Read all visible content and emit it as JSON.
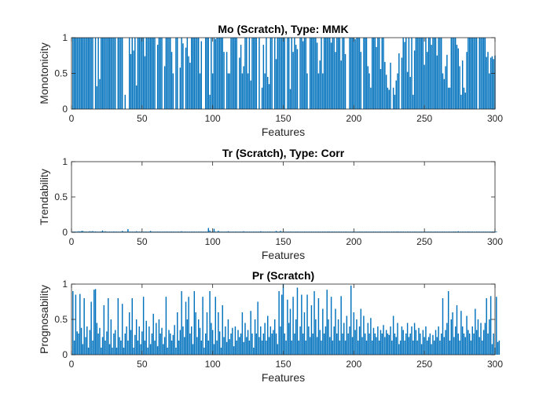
{
  "chart_data": [
    {
      "type": "bar",
      "title": "Mo (Scratch), Type: MMK",
      "xlabel": "Features",
      "ylabel": "Monotonicity",
      "xlim": [
        0,
        300
      ],
      "ylim": [
        0,
        1
      ],
      "xticks": [
        "0",
        "50",
        "100",
        "150",
        "200",
        "250",
        "300"
      ],
      "yticks": [
        "0",
        "0.5",
        "1"
      ],
      "bar_color": "#0072BD",
      "note": "298 features; most bars reach 1 with scattered lower values and gaps (0)",
      "values": [
        1,
        1,
        1,
        1,
        1,
        1,
        1,
        1,
        1,
        1,
        1,
        1,
        1,
        1,
        1,
        0,
        1,
        0.32,
        1,
        0.42,
        1,
        1,
        1,
        1,
        1,
        1,
        1,
        1,
        1,
        1,
        1,
        0,
        1,
        1,
        1,
        1,
        0,
        0.2,
        0,
        0,
        1,
        0.77,
        1,
        0.82,
        1,
        0.33,
        1,
        1,
        1,
        1,
        1,
        0.74,
        1,
        1,
        1,
        1,
        1,
        1,
        1,
        0,
        0.9,
        1,
        1,
        1,
        0,
        0.6,
        1,
        1,
        1,
        1,
        0.8,
        0.5,
        0,
        1,
        1,
        0,
        0.58,
        1,
        0.92,
        0,
        0.86,
        1,
        0.74,
        0.65,
        1,
        1,
        1,
        1,
        1,
        1,
        0.5,
        0.95,
        0,
        0,
        1,
        1,
        1,
        0.2,
        1,
        0.5,
        1,
        0.98,
        1,
        1,
        1,
        1,
        1,
        0.8,
        0,
        0.8,
        0.5,
        0.5,
        1,
        1,
        1,
        1,
        1,
        0,
        0.72,
        0.9,
        0.5,
        0.6,
        1,
        1,
        0.5,
        1,
        0.4,
        1,
        1,
        1,
        1,
        0,
        1,
        0,
        0.3,
        0.9,
        0.5,
        1,
        0.45,
        0.35,
        1,
        1,
        0,
        1,
        0.7,
        1,
        1,
        1,
        1,
        1,
        1,
        0,
        1,
        1,
        0.28,
        1,
        0.8,
        1,
        0.9,
        0.84,
        0,
        1,
        1,
        0.95,
        1,
        1,
        0.5,
        0,
        1,
        1,
        1,
        1,
        1,
        0.93,
        0.5,
        0.68,
        1,
        0.5,
        1,
        1,
        1,
        1,
        1,
        0.93,
        1,
        1,
        0.8,
        1,
        1,
        1,
        0.68,
        1,
        1,
        0.77,
        0,
        0,
        1,
        1,
        1,
        1,
        0.98,
        1,
        1,
        1,
        0.8,
        0,
        1,
        1,
        1,
        0.6,
        0.5,
        0.3,
        1,
        1,
        1,
        0.87,
        1,
        1,
        0.56,
        1,
        1,
        0.66,
        0.48,
        0.3,
        0.27,
        0.65,
        0,
        0.3,
        0.2,
        0.4,
        0.5,
        0.78,
        0,
        0.72,
        1,
        0.94,
        1,
        0.52,
        1,
        0.45,
        1,
        0.2,
        0.82,
        1,
        1,
        1,
        1,
        1,
        1,
        0.62,
        1,
        0.8,
        1,
        1,
        0.9,
        1,
        1,
        1,
        0.75,
        1,
        1,
        1,
        0.5,
        0.42,
        0.6,
        0.76,
        0.3,
        0.3,
        1,
        1,
        1,
        1,
        0.9,
        0.85,
        0.6,
        0.2,
        0.68,
        0.3,
        0.23,
        0.8,
        1,
        1,
        1,
        1,
        1,
        1,
        1,
        0,
        1,
        1,
        1,
        1,
        1,
        0.73,
        0.8,
        0.5,
        0.72,
        0.74,
        0.7,
        0.75
      ]
    },
    {
      "type": "bar",
      "title": "Tr (Scratch), Type: Corr",
      "xlabel": "Features",
      "ylabel": "Trendability",
      "xlim": [
        0,
        300
      ],
      "ylim": [
        0,
        1
      ],
      "xticks": [
        "0",
        "50",
        "100",
        "150",
        "200",
        "250",
        "300"
      ],
      "yticks": [
        "0",
        "0.5",
        "1"
      ],
      "bar_color": "#0072BD",
      "note": "all values near zero (< 0.07)",
      "values": [
        0.01,
        0.01,
        0.01,
        0.01,
        0.015,
        0.012,
        0.018,
        0.02,
        0.01,
        0.012,
        0.01,
        0.01,
        0.015,
        0.012,
        0.018,
        0.01,
        0.012,
        0.01,
        0.01,
        0.01,
        0.012,
        0.025,
        0.01,
        0.015,
        0.01,
        0.01,
        0.01,
        0.01,
        0.01,
        0.012,
        0.01,
        0.01,
        0.01,
        0.01,
        0.01,
        0.02,
        0.01,
        0.01,
        0.01,
        0.045,
        0.01,
        0.01,
        0.01,
        0.01,
        0.01,
        0.015,
        0.01,
        0.01,
        0.01,
        0.01,
        0.01,
        0.01,
        0.01,
        0.01,
        0.01,
        0.02,
        0.01,
        0.01,
        0.01,
        0.01,
        0.01,
        0.01,
        0.01,
        0.01,
        0.01,
        0.01,
        0.01,
        0.01,
        0.01,
        0.01,
        0.01,
        0.01,
        0.01,
        0.01,
        0.01,
        0.01,
        0.01,
        0.015,
        0.01,
        0.01,
        0.01,
        0.01,
        0.01,
        0.01,
        0.01,
        0.01,
        0.01,
        0.01,
        0.01,
        0.01,
        0.01,
        0.01,
        0.01,
        0.01,
        0.01,
        0.01,
        0.06,
        0.025,
        0.01,
        0.01,
        0.05,
        0.01,
        0.01,
        0.02,
        0.01,
        0.01,
        0.01,
        0.01,
        0.01,
        0.01,
        0.015,
        0.01,
        0.01,
        0.01,
        0.01,
        0.01,
        0.01,
        0.01,
        0.01,
        0.01,
        0.01,
        0.015,
        0.01,
        0.01,
        0.01,
        0.01,
        0.01,
        0.01,
        0.01,
        0.01,
        0.01,
        0.01,
        0.01,
        0.015,
        0.01,
        0.01,
        0.01,
        0.01,
        0.01,
        0.01,
        0.01,
        0.01,
        0.01,
        0.01,
        0.02,
        0.01,
        0.01,
        0.02,
        0.01,
        0.01,
        0.01,
        0.01,
        0.01,
        0.01,
        0.01,
        0.01,
        0.01,
        0.01,
        0.01,
        0.01,
        0.01,
        0.01,
        0.01,
        0.01,
        0.01,
        0.01,
        0.01,
        0.01,
        0.01,
        0.01,
        0.01,
        0.01,
        0.01,
        0.01,
        0.01,
        0.01,
        0.01,
        0.01,
        0.01,
        0.01,
        0.01,
        0.012,
        0.01,
        0.01,
        0.01,
        0.01,
        0.01,
        0.01,
        0.01,
        0.01,
        0.01,
        0.01,
        0.01,
        0.01,
        0.01,
        0.01,
        0.01,
        0.01,
        0.01,
        0.01,
        0.01,
        0.01,
        0.01,
        0.01,
        0.01,
        0.01,
        0.01,
        0.01,
        0.01,
        0.01,
        0.01,
        0.01,
        0.01,
        0.01,
        0.01,
        0.01,
        0.01,
        0.01,
        0.01,
        0.01,
        0.01,
        0.01,
        0.01,
        0.01,
        0.01,
        0.01,
        0.01,
        0.01,
        0.01,
        0.01,
        0.012,
        0.01,
        0.01,
        0.01,
        0.01,
        0.01,
        0.01,
        0.01,
        0.01,
        0.01,
        0.01,
        0.01,
        0.01,
        0.01,
        0.01,
        0.01,
        0.01,
        0.01,
        0.01,
        0.01,
        0.01,
        0.01,
        0.01,
        0.01,
        0.01,
        0.01,
        0.01,
        0.01,
        0.01,
        0.01,
        0.01,
        0.01,
        0.01,
        0.01,
        0.01,
        0.01,
        0.01,
        0.01,
        0.01,
        0.01,
        0.012,
        0.01,
        0.01,
        0.015,
        0.01,
        0.01,
        0.01,
        0.01,
        0.01,
        0.01,
        0.012,
        0.01,
        0.01,
        0.01,
        0.01,
        0.01,
        0.01,
        0.01,
        0.01,
        0.01,
        0.01,
        0.01,
        0.01,
        0.01,
        0.01,
        0.01,
        0.01,
        0.01,
        0.01,
        0.01,
        0.01
      ]
    },
    {
      "type": "bar",
      "title": "Pr (Scratch)",
      "xlabel": "Features",
      "ylabel": "Prognosability",
      "xlim": [
        0,
        300
      ],
      "ylim": [
        0,
        1
      ],
      "xticks": [
        "0",
        "50",
        "100",
        "150",
        "200",
        "250",
        "300"
      ],
      "yticks": [
        "0",
        "0.5",
        "1"
      ],
      "bar_color": "#0072BD",
      "note": "298 features; values vary widely between 0 and 1",
      "values": [
        0.9,
        0.2,
        0.85,
        0.33,
        0.3,
        0.86,
        0.38,
        0.15,
        0.8,
        0.25,
        0.4,
        0.1,
        0.35,
        0.75,
        0.2,
        0.92,
        0.93,
        0.45,
        0.3,
        0.38,
        0.1,
        0.25,
        0.7,
        0.2,
        0.33,
        0.8,
        0.15,
        0.5,
        0.1,
        0.3,
        0.35,
        0.1,
        0.8,
        0.25,
        0.2,
        0.72,
        0.1,
        0.3,
        0.4,
        0.2,
        0.6,
        0.35,
        0.8,
        0.1,
        0.28,
        0.5,
        0.2,
        0.4,
        0.15,
        0.33,
        0.82,
        0.2,
        0.48,
        0.1,
        0.4,
        0.15,
        0.3,
        0.58,
        0.2,
        0.45,
        0.12,
        0.5,
        0.3,
        0.38,
        0.15,
        0.25,
        0.82,
        0.1,
        0.35,
        0.3,
        0.2,
        0.28,
        0.42,
        0.1,
        0.6,
        0.2,
        0.35,
        0.9,
        0.4,
        0.25,
        0.75,
        0.5,
        0.82,
        0.3,
        0.4,
        0.15,
        0.9,
        0.6,
        0.25,
        0.5,
        0.38,
        0.2,
        0.82,
        0.1,
        0.3,
        0.6,
        0.2,
        0.9,
        0.45,
        0.35,
        0.15,
        0.82,
        0.2,
        0.6,
        0.33,
        0.1,
        0.7,
        0.25,
        0.4,
        0.18,
        0.5,
        0.22,
        0.3,
        0.38,
        0.12,
        0.4,
        0.2,
        0.35,
        0.25,
        0.3,
        0.6,
        0.18,
        0.45,
        0.25,
        0.35,
        0.2,
        0.62,
        0.3,
        0.1,
        0.5,
        0.3,
        0.75,
        0.25,
        0.4,
        0.2,
        0.3,
        0.45,
        0.2,
        0.55,
        0.25,
        0.4,
        0.3,
        0.35,
        0.5,
        0.3,
        0.15,
        0.9,
        0.4,
        0.85,
        1,
        0.3,
        0.2,
        0.78,
        0.45,
        0.65,
        0.2,
        0.82,
        0.3,
        0.5,
        0.95,
        0.2,
        0.4,
        0.85,
        0.3,
        0.6,
        0.2,
        0.85,
        0.4,
        0.25,
        0.7,
        0.3,
        0.9,
        0.5,
        0.25,
        0.8,
        0.35,
        0.2,
        0.65,
        0.3,
        0.4,
        0.92,
        0.5,
        0.25,
        0.82,
        0.2,
        0.4,
        0.65,
        0.3,
        0.5,
        0.2,
        0.83,
        0.3,
        0.45,
        0.2,
        0.55,
        0.3,
        0.4,
        0.98,
        0.25,
        0.6,
        0.35,
        0.5,
        0.2,
        0.4,
        0.65,
        0.25,
        0.55,
        0.3,
        0.2,
        0.45,
        0.3,
        0.52,
        0.2,
        0.38,
        0.3,
        0.25,
        0.4,
        0.2,
        0.35,
        0.3,
        0.42,
        0.25,
        0.35,
        0.3,
        0.28,
        0.4,
        0.2,
        0.55,
        0.3,
        0.25,
        0.45,
        0.15,
        0.2,
        0.4,
        0.35,
        0.2,
        0.3,
        0.45,
        0.25,
        0.3,
        0.4,
        0.2,
        0.45,
        0.35,
        0.2,
        0.38,
        0.3,
        0.15,
        0.35,
        0.25,
        0.4,
        0.2,
        0.25,
        0.3,
        0.15,
        0.28,
        0.2,
        0.35,
        0.25,
        0.4,
        0.2,
        0.3,
        0.8,
        0.25,
        0.35,
        0.45,
        0.9,
        0.2,
        0.5,
        0.6,
        0.25,
        0.4,
        0.7,
        0.3,
        0.2,
        0.62,
        0.4,
        0.3,
        0.25,
        0.55,
        0.35,
        0.3,
        0.2,
        0.4,
        0.3,
        0.65,
        0.35,
        0.5,
        0.25,
        0.45,
        0.2,
        0.35,
        0.45,
        0.8,
        0.3,
        0.5,
        0.83,
        0.15,
        0.3,
        0.1,
        0.82,
        0.18,
        0.2
      ]
    }
  ]
}
